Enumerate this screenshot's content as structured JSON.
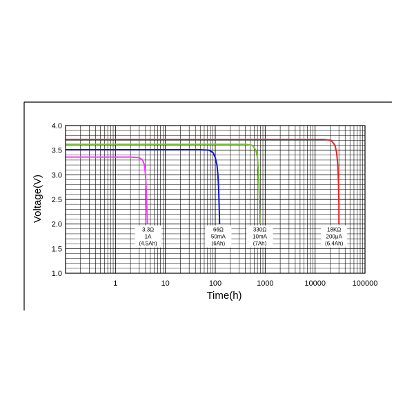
{
  "chart_data": {
    "type": "line",
    "title": "",
    "xlabel": "Time(h)",
    "ylabel": "Voltage(V)",
    "x_scale": "log",
    "xlim": [
      0.1,
      100000
    ],
    "ylim": [
      1.0,
      4.0
    ],
    "grid": true,
    "x_ticks": [
      {
        "value": 1,
        "label": "1"
      },
      {
        "value": 10,
        "label": "10"
      },
      {
        "value": 100,
        "label": "100"
      },
      {
        "value": 1000,
        "label": "1000"
      },
      {
        "value": 10000,
        "label": "10000"
      },
      {
        "value": 100000,
        "label": "100000"
      }
    ],
    "y_ticks": [
      {
        "value": 1.0,
        "label": "1.0"
      },
      {
        "value": 1.5,
        "label": "1.5"
      },
      {
        "value": 2.0,
        "label": "2.0"
      },
      {
        "value": 2.5,
        "label": "2.5"
      },
      {
        "value": 3.0,
        "label": "3.0"
      },
      {
        "value": 3.5,
        "label": "3.5"
      },
      {
        "value": 4.0,
        "label": "4.0"
      }
    ],
    "series": [
      {
        "color": "#ff33ff",
        "x": [
          0.1,
          1,
          2,
          3,
          3.5,
          3.8,
          4.0,
          4.1,
          4.2,
          4.3,
          4.35
        ],
        "y": [
          3.36,
          3.36,
          3.36,
          3.35,
          3.3,
          3.2,
          3.0,
          2.8,
          2.5,
          2.2,
          2.0
        ],
        "annotation": [
          "3.3Ω",
          "1A",
          "(4.5Ah)"
        ],
        "annotation_x": 4.5
      },
      {
        "color": "#1010dd",
        "x": [
          0.1,
          10,
          50,
          75,
          90,
          100,
          108,
          113,
          117,
          120,
          122
        ],
        "y": [
          3.51,
          3.51,
          3.51,
          3.5,
          3.45,
          3.35,
          3.2,
          3.0,
          2.7,
          2.3,
          2.0
        ],
        "annotation": [
          "66Ω",
          "50mA",
          "(6Ah)"
        ],
        "annotation_x": 115
      },
      {
        "color": "#77bb33",
        "x": [
          0.1,
          100,
          400,
          550,
          650,
          700,
          730,
          750,
          765,
          775,
          780
        ],
        "y": [
          3.62,
          3.62,
          3.62,
          3.6,
          3.5,
          3.35,
          3.1,
          2.8,
          2.5,
          2.2,
          2.0
        ],
        "annotation": [
          "330Ω",
          "10mA",
          "(7Ah)"
        ],
        "annotation_x": 780
      },
      {
        "color": "#ee2222",
        "x": [
          0.1,
          1000,
          15000,
          21000,
          25000,
          27000,
          28500,
          29500,
          30000,
          30000
        ],
        "y": [
          3.72,
          3.72,
          3.72,
          3.7,
          3.6,
          3.45,
          3.2,
          2.8,
          2.4,
          2.0
        ],
        "annotation": [
          "18KΩ",
          "200μA",
          "(6.4Ah)"
        ],
        "annotation_x": 24000
      }
    ]
  }
}
